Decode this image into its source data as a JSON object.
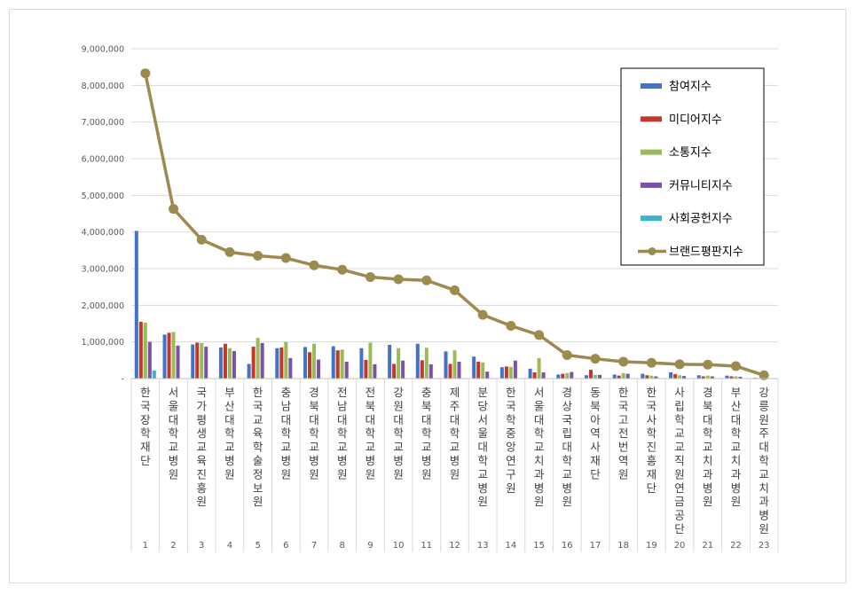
{
  "chart_data": {
    "type": "bar+line",
    "categories": [
      "한국장학재단",
      "서울대학교병원",
      "국가평생교육진흥원",
      "부산대학교병원",
      "한국교육학술정보원",
      "충남대학교병원",
      "경북대학교병원",
      "전남대학교병원",
      "전북대학교병원",
      "강원대학교병원",
      "충북대학교병원",
      "제주대학교병원",
      "분당서울대학교병원",
      "한국학중앙연구원",
      "서울대학교치과병원",
      "경상국립대학교병원",
      "동북아역사재단",
      "한국고전번역원",
      "한국사학진흥재단",
      "사립학교교직원연금공단",
      "경북대학교치과병원",
      "부산대학교치과병원",
      "강릉원주대학교치과병원"
    ],
    "x_numbers": [
      "1",
      "2",
      "3",
      "4",
      "5",
      "6",
      "7",
      "8",
      "9",
      "10",
      "11",
      "12",
      "13",
      "14",
      "15",
      "16",
      "17",
      "18",
      "19",
      "20",
      "21",
      "22",
      "23"
    ],
    "y_ticks": [
      "-",
      "1,000,000",
      "2,000,000",
      "3,000,000",
      "4,000,000",
      "5,000,000",
      "6,000,000",
      "7,000,000",
      "8,000,000",
      "9,000,000"
    ],
    "ylim": [
      0,
      9000000
    ],
    "legend_position": "top-right",
    "series": [
      {
        "name": "참여지수",
        "color": "#4472c4",
        "kind": "bar",
        "values": [
          4030000,
          1200000,
          930000,
          850000,
          400000,
          830000,
          860000,
          880000,
          830000,
          920000,
          950000,
          740000,
          600000,
          310000,
          270000,
          110000,
          90000,
          110000,
          130000,
          170000,
          90000,
          80000,
          20000
        ]
      },
      {
        "name": "미디어지수",
        "color": "#c0392b",
        "kind": "bar",
        "values": [
          1550000,
          1250000,
          980000,
          950000,
          870000,
          850000,
          720000,
          770000,
          510000,
          400000,
          500000,
          400000,
          460000,
          330000,
          170000,
          130000,
          240000,
          80000,
          90000,
          120000,
          60000,
          60000,
          10000
        ]
      },
      {
        "name": "소통지수",
        "color": "#9bbb59",
        "kind": "bar",
        "values": [
          1530000,
          1270000,
          970000,
          830000,
          1110000,
          1000000,
          950000,
          790000,
          980000,
          830000,
          840000,
          770000,
          440000,
          320000,
          560000,
          150000,
          100000,
          150000,
          80000,
          90000,
          80000,
          60000,
          10000
        ]
      },
      {
        "name": "커뮤니티지수",
        "color": "#7b52a8",
        "kind": "bar",
        "values": [
          1000000,
          900000,
          870000,
          750000,
          970000,
          560000,
          520000,
          460000,
          390000,
          490000,
          390000,
          460000,
          190000,
          490000,
          170000,
          180000,
          100000,
          130000,
          60000,
          70000,
          60000,
          50000,
          10000
        ]
      },
      {
        "name": "사회공헌지수",
        "color": "#3fb1c9",
        "kind": "bar",
        "values": [
          220000,
          0,
          0,
          0,
          0,
          0,
          0,
          0,
          0,
          0,
          0,
          0,
          0,
          0,
          0,
          0,
          0,
          0,
          0,
          0,
          0,
          0,
          0
        ]
      },
      {
        "name": "브랜드평판지수",
        "color": "#9c8a4e",
        "kind": "line",
        "values": [
          8330000,
          4630000,
          3790000,
          3450000,
          3350000,
          3290000,
          3090000,
          2970000,
          2770000,
          2710000,
          2680000,
          2410000,
          1740000,
          1440000,
          1190000,
          640000,
          540000,
          460000,
          430000,
          390000,
          380000,
          340000,
          90000
        ]
      }
    ]
  }
}
